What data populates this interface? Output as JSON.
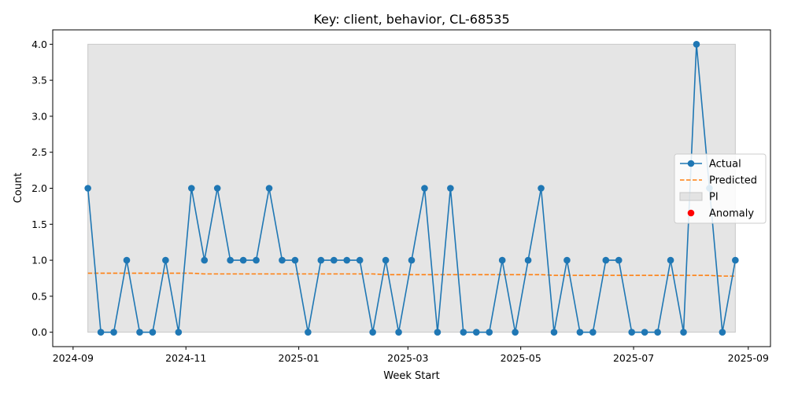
{
  "chart_data": {
    "type": "line",
    "title": "Key: client, behavior, CL-68535",
    "xlabel": "Week Start",
    "ylabel": "Count",
    "ylim": [
      -0.2,
      4.2
    ],
    "xlim": [
      "2024-08-31",
      "2024-09-30"
    ],
    "x_ticks": [
      "2024-09",
      "2024-11",
      "2025-01",
      "2025-03",
      "2025-05",
      "2025-07",
      "2025-09"
    ],
    "y_ticks": [
      "0.0",
      "0.5",
      "1.0",
      "1.5",
      "2.0",
      "2.5",
      "3.0",
      "3.5",
      "4.0"
    ],
    "grid": false,
    "legend_position": "center-right",
    "x": [
      "2024-09-09",
      "2024-09-16",
      "2024-09-23",
      "2024-09-30",
      "2024-10-07",
      "2024-10-14",
      "2024-10-21",
      "2024-10-28",
      "2024-11-04",
      "2024-11-11",
      "2024-11-18",
      "2024-11-25",
      "2024-12-02",
      "2024-12-09",
      "2024-12-16",
      "2024-12-23",
      "2024-12-30",
      "2025-01-06",
      "2025-01-13",
      "2025-01-20",
      "2025-01-27",
      "2025-02-03",
      "2025-02-10",
      "2025-02-17",
      "2025-02-24",
      "2025-03-03",
      "2025-03-10",
      "2025-03-17",
      "2025-03-24",
      "2025-03-31",
      "2025-04-07",
      "2025-04-14",
      "2025-04-21",
      "2025-04-28",
      "2025-05-05",
      "2025-05-12",
      "2025-05-19",
      "2025-05-26",
      "2025-06-02",
      "2025-06-09",
      "2025-06-16",
      "2025-06-23",
      "2025-06-30",
      "2025-07-07",
      "2025-07-14",
      "2025-07-21",
      "2025-07-28",
      "2025-08-04",
      "2025-08-11",
      "2025-08-18",
      "2025-08-25"
    ],
    "series": [
      {
        "name": "Actual",
        "type": "line-markers",
        "color": "#1f77b4",
        "values": [
          2,
          0,
          0,
          1,
          0,
          0,
          1,
          0,
          2,
          1,
          2,
          1,
          1,
          1,
          2,
          1,
          1,
          0,
          1,
          1,
          1,
          1,
          0,
          1,
          0,
          1,
          2,
          0,
          2,
          0,
          0,
          0,
          1,
          0,
          1,
          2,
          0,
          1,
          0,
          0,
          1,
          1,
          0,
          0,
          0,
          1,
          0,
          4,
          2,
          0,
          1
        ]
      },
      {
        "name": "Predicted",
        "type": "dashed-line",
        "color": "#ff7f0e",
        "values": [
          0.82,
          0.82,
          0.82,
          0.82,
          0.82,
          0.82,
          0.82,
          0.82,
          0.82,
          0.81,
          0.81,
          0.81,
          0.81,
          0.81,
          0.81,
          0.81,
          0.81,
          0.81,
          0.81,
          0.81,
          0.81,
          0.81,
          0.81,
          0.8,
          0.8,
          0.8,
          0.8,
          0.8,
          0.8,
          0.8,
          0.8,
          0.8,
          0.8,
          0.8,
          0.8,
          0.8,
          0.79,
          0.79,
          0.79,
          0.79,
          0.79,
          0.79,
          0.79,
          0.79,
          0.79,
          0.79,
          0.79,
          0.79,
          0.79,
          0.78,
          0.78
        ]
      },
      {
        "name": "PI",
        "type": "band",
        "color": "#d3d3d3",
        "lower": 0,
        "upper": 4
      },
      {
        "name": "Anomaly",
        "type": "scatter",
        "color": "#ff0000",
        "values": []
      }
    ]
  }
}
